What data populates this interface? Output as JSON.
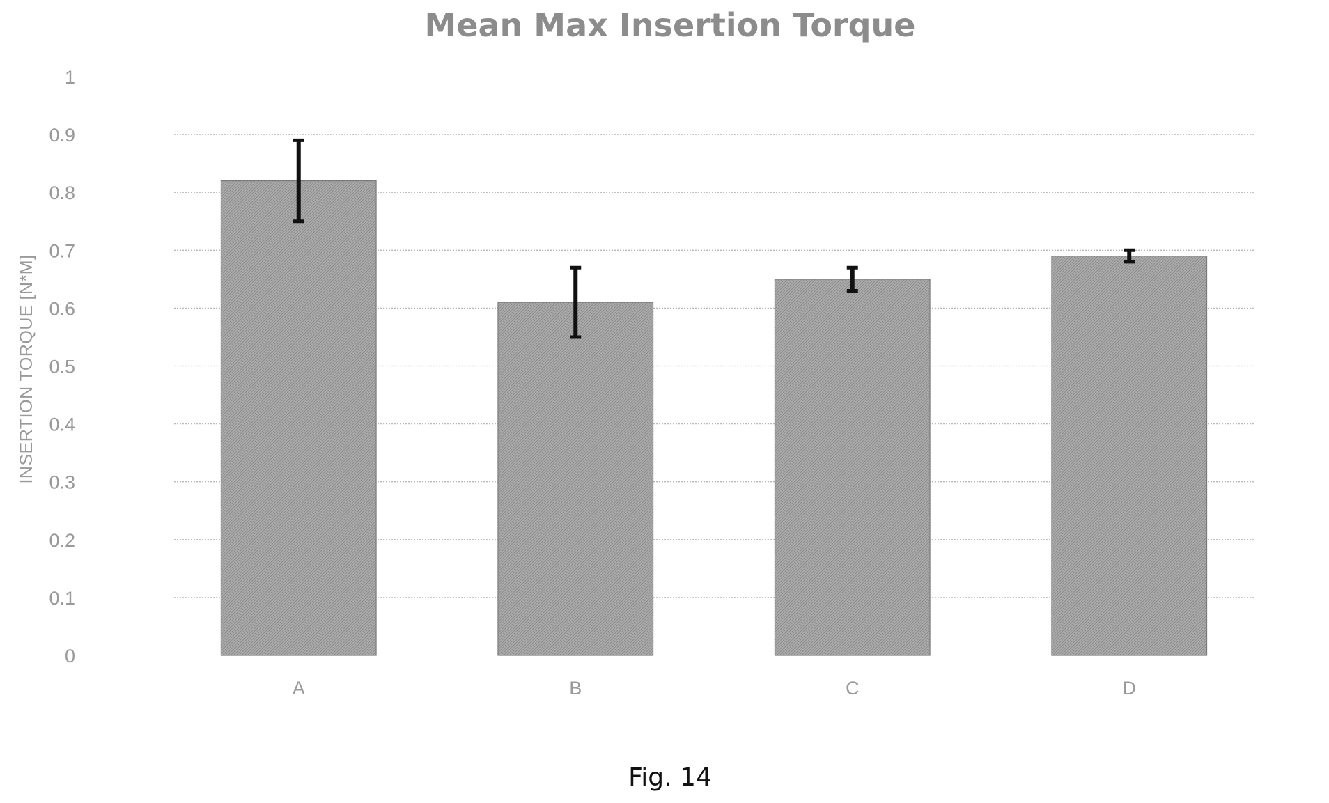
{
  "chart_data": {
    "type": "bar",
    "title": "Mean Max Insertion Torque",
    "xlabel": "",
    "ylabel": "INSERTION TORQUE [N*M]",
    "categories": [
      "A",
      "B",
      "C",
      "D"
    ],
    "values": [
      0.82,
      0.61,
      0.65,
      0.69
    ],
    "error_low": [
      0.75,
      0.55,
      0.63,
      0.68
    ],
    "error_high": [
      0.89,
      0.67,
      0.67,
      0.7
    ],
    "ylim": [
      0,
      1
    ],
    "yticks": [
      "0",
      "0.1",
      "0.2",
      "0.3",
      "0.4",
      "0.5",
      "0.6",
      "0.7",
      "0.8",
      "0.9",
      "1"
    ],
    "grid": true,
    "legend": "none",
    "bar_color": "#a6a6a6",
    "error_bar_color": "#111111"
  },
  "caption": "Fig. 14"
}
